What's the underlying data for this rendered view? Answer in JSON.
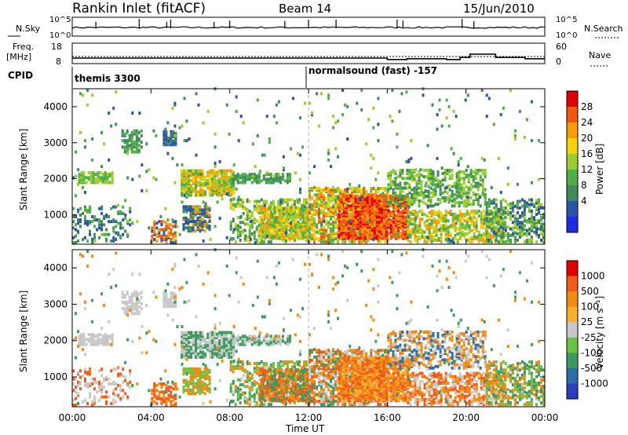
{
  "header": {
    "station": "Rankin Inlet (fitACF)",
    "beam": "Beam 14",
    "date": "15/Jun/2010"
  },
  "status_panels": {
    "nsky_label": "N.Sky",
    "nsky_ticks": [
      "10^5",
      "10^0"
    ],
    "nsearch_label": "N.Search",
    "nsearch_ticks": [
      "10^5",
      "10^0"
    ],
    "freq_label": "Freq.",
    "freq_unit": "[MHz]",
    "freq_ticks": [
      "18",
      "8"
    ],
    "nave_label": "Nave",
    "nave_ticks": [
      "60",
      "0"
    ],
    "cpid_label": "CPID",
    "cpid_segments": [
      "themis 3300",
      "normalsound (fast) -157"
    ]
  },
  "axes": {
    "x_ticks": [
      "00:00",
      "04:00",
      "08:00",
      "12:00",
      "16:00",
      "20:00",
      "00:00"
    ],
    "x_label": "Time UT",
    "y_ticks": [
      "4000",
      "3000",
      "2000",
      "1000"
    ],
    "y_label": "Slant Range [km]"
  },
  "power_scale": {
    "label": "Power [dB]",
    "ticks": [
      "28",
      "24",
      "20",
      "16",
      "12",
      "8",
      "4"
    ],
    "colors": [
      "#1e2ee0",
      "#2b54a6",
      "#3f8a5a",
      "#4fae45",
      "#9ccd2e",
      "#f5d10a",
      "#f79a0c",
      "#f05a10",
      "#e00000"
    ]
  },
  "velocity_scale": {
    "label": "Velocity [m s⁻¹]",
    "ticks": [
      "1000",
      "500",
      "100",
      "25",
      "-25",
      "-100",
      "-500",
      "-1000"
    ],
    "colors": [
      "#2a3fbf",
      "#2c6fa8",
      "#3e9a5f",
      "#6cc242",
      "#c8c8c8",
      "#f5b030",
      "#f58a10",
      "#f05a1a",
      "#e00000"
    ]
  },
  "chart_data": [
    {
      "type": "line",
      "title": "N.Sky",
      "x_range_hours": [
        0,
        24
      ],
      "y_scale": "log",
      "ylim": [
        1,
        100000
      ]
    },
    {
      "type": "line",
      "title": "Freq. [MHz] / Nave",
      "x": [
        0,
        12,
        16,
        17,
        19,
        19.7,
        20.2,
        21.5,
        23,
        24
      ],
      "freq_mhz": [
        10.7,
        10.7,
        10,
        10.4,
        10,
        11,
        12.6,
        11,
        10.4,
        10.4
      ],
      "ylim": [
        8,
        18
      ]
    },
    {
      "type": "heatmap",
      "title": "Power [dB]",
      "x_range_hours": [
        0,
        24
      ],
      "y_range_km": [
        180,
        4500
      ],
      "zlim": [
        0,
        30
      ],
      "grid": false
    },
    {
      "type": "heatmap",
      "title": "Velocity [m s⁻¹]",
      "x_range_hours": [
        0,
        24
      ],
      "y_range_km": [
        180,
        4500
      ],
      "zlim": [
        -1000,
        1000
      ],
      "grid": false
    }
  ]
}
